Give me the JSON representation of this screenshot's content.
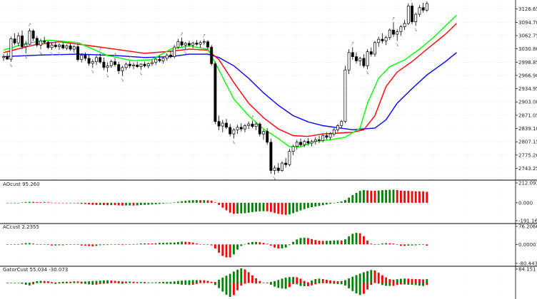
{
  "chart_data": [
    {
      "type": "candlestick",
      "panel": "main",
      "ylim": [
        2720,
        3145
      ],
      "y_ticks": [
        "3126.65",
        "3094.70",
        "3062.75",
        "3030.80",
        "2998.85",
        "2966.90",
        "2934.95",
        "2903.00",
        "2871.05",
        "2839.10",
        "2807.15",
        "2775.20",
        "2743.25"
      ],
      "candles": [
        {
          "o": 3010,
          "h": 3018,
          "l": 3002,
          "c": 3012
        },
        {
          "o": 3012,
          "h": 3022,
          "l": 3005,
          "c": 3006
        },
        {
          "o": 3006,
          "h": 3060,
          "l": 3000,
          "c": 3055
        },
        {
          "o": 3055,
          "h": 3068,
          "l": 3040,
          "c": 3045
        },
        {
          "o": 3045,
          "h": 3070,
          "l": 3038,
          "c": 3062
        },
        {
          "o": 3062,
          "h": 3075,
          "l": 3030,
          "c": 3036
        },
        {
          "o": 3036,
          "h": 3050,
          "l": 3020,
          "c": 3042
        },
        {
          "o": 3042,
          "h": 3080,
          "l": 3040,
          "c": 3074
        },
        {
          "o": 3074,
          "h": 3078,
          "l": 3050,
          "c": 3056
        },
        {
          "o": 3056,
          "h": 3062,
          "l": 3035,
          "c": 3040
        },
        {
          "o": 3040,
          "h": 3055,
          "l": 3030,
          "c": 3050
        },
        {
          "o": 3050,
          "h": 3060,
          "l": 3044,
          "c": 3047
        },
        {
          "o": 3047,
          "h": 3050,
          "l": 3030,
          "c": 3034
        },
        {
          "o": 3034,
          "h": 3045,
          "l": 3028,
          "c": 3040
        },
        {
          "o": 3040,
          "h": 3048,
          "l": 3032,
          "c": 3036
        },
        {
          "o": 3036,
          "h": 3044,
          "l": 3028,
          "c": 3040
        },
        {
          "o": 3040,
          "h": 3046,
          "l": 3030,
          "c": 3033
        },
        {
          "o": 3033,
          "h": 3042,
          "l": 3028,
          "c": 3038
        },
        {
          "o": 3038,
          "h": 3044,
          "l": 3026,
          "c": 3030
        },
        {
          "o": 3030,
          "h": 3040,
          "l": 3022,
          "c": 3036
        },
        {
          "o": 3036,
          "h": 3042,
          "l": 3000,
          "c": 3005
        },
        {
          "o": 3005,
          "h": 3020,
          "l": 2998,
          "c": 3016
        },
        {
          "o": 3016,
          "h": 3022,
          "l": 3002,
          "c": 3008
        },
        {
          "o": 3008,
          "h": 3018,
          "l": 2990,
          "c": 2996
        },
        {
          "o": 2996,
          "h": 3005,
          "l": 2985,
          "c": 3000
        },
        {
          "o": 3000,
          "h": 3015,
          "l": 2992,
          "c": 3010
        },
        {
          "o": 3010,
          "h": 3020,
          "l": 2995,
          "c": 2999
        },
        {
          "o": 2999,
          "h": 3010,
          "l": 2980,
          "c": 2986
        },
        {
          "o": 2986,
          "h": 2998,
          "l": 2975,
          "c": 2990
        },
        {
          "o": 2990,
          "h": 3005,
          "l": 2985,
          "c": 3000
        },
        {
          "o": 3000,
          "h": 3008,
          "l": 2988,
          "c": 2993
        },
        {
          "o": 2993,
          "h": 3000,
          "l": 2970,
          "c": 2978
        },
        {
          "o": 2978,
          "h": 2990,
          "l": 2965,
          "c": 2986
        },
        {
          "o": 2986,
          "h": 2998,
          "l": 2980,
          "c": 2994
        },
        {
          "o": 2994,
          "h": 3002,
          "l": 2984,
          "c": 2990
        },
        {
          "o": 2990,
          "h": 2998,
          "l": 2982,
          "c": 2992
        },
        {
          "o": 2992,
          "h": 3000,
          "l": 2985,
          "c": 2988
        },
        {
          "o": 2988,
          "h": 2996,
          "l": 2980,
          "c": 2994
        },
        {
          "o": 2994,
          "h": 3000,
          "l": 2986,
          "c": 2990
        },
        {
          "o": 2990,
          "h": 2998,
          "l": 2984,
          "c": 2995
        },
        {
          "o": 2995,
          "h": 3005,
          "l": 2990,
          "c": 2998
        },
        {
          "o": 2998,
          "h": 3010,
          "l": 2992,
          "c": 3006
        },
        {
          "o": 3006,
          "h": 3015,
          "l": 2998,
          "c": 3002
        },
        {
          "o": 3002,
          "h": 3012,
          "l": 2996,
          "c": 3008
        },
        {
          "o": 3008,
          "h": 3020,
          "l": 3002,
          "c": 3016
        },
        {
          "o": 3016,
          "h": 3025,
          "l": 3008,
          "c": 3012
        },
        {
          "o": 3012,
          "h": 3040,
          "l": 3008,
          "c": 3035
        },
        {
          "o": 3035,
          "h": 3055,
          "l": 3030,
          "c": 3048
        },
        {
          "o": 3048,
          "h": 3058,
          "l": 3036,
          "c": 3040
        },
        {
          "o": 3040,
          "h": 3048,
          "l": 3030,
          "c": 3044
        },
        {
          "o": 3044,
          "h": 3050,
          "l": 3036,
          "c": 3040
        },
        {
          "o": 3040,
          "h": 3048,
          "l": 3032,
          "c": 3045
        },
        {
          "o": 3045,
          "h": 3052,
          "l": 3038,
          "c": 3042
        },
        {
          "o": 3042,
          "h": 3050,
          "l": 3034,
          "c": 3046
        },
        {
          "o": 3046,
          "h": 3054,
          "l": 3040,
          "c": 3048
        },
        {
          "o": 3048,
          "h": 3052,
          "l": 3030,
          "c": 3035
        },
        {
          "o": 3035,
          "h": 3040,
          "l": 2990,
          "c": 2995
        },
        {
          "o": 2995,
          "h": 3000,
          "l": 2850,
          "c": 2856
        },
        {
          "o": 2856,
          "h": 2870,
          "l": 2835,
          "c": 2845
        },
        {
          "o": 2845,
          "h": 2860,
          "l": 2830,
          "c": 2852
        },
        {
          "o": 2852,
          "h": 2862,
          "l": 2838,
          "c": 2842
        },
        {
          "o": 2842,
          "h": 2850,
          "l": 2820,
          "c": 2826
        },
        {
          "o": 2826,
          "h": 2840,
          "l": 2815,
          "c": 2836
        },
        {
          "o": 2836,
          "h": 2848,
          "l": 2826,
          "c": 2842
        },
        {
          "o": 2842,
          "h": 2852,
          "l": 2832,
          "c": 2838
        },
        {
          "o": 2838,
          "h": 2850,
          "l": 2830,
          "c": 2846
        },
        {
          "o": 2846,
          "h": 2856,
          "l": 2838,
          "c": 2850
        },
        {
          "o": 2850,
          "h": 2858,
          "l": 2840,
          "c": 2844
        },
        {
          "o": 2844,
          "h": 2855,
          "l": 2835,
          "c": 2850
        },
        {
          "o": 2850,
          "h": 2854,
          "l": 2820,
          "c": 2826
        },
        {
          "o": 2826,
          "h": 2836,
          "l": 2812,
          "c": 2832
        },
        {
          "o": 2832,
          "h": 2840,
          "l": 2800,
          "c": 2806
        },
        {
          "o": 2806,
          "h": 2815,
          "l": 2730,
          "c": 2738
        },
        {
          "o": 2738,
          "h": 2750,
          "l": 2728,
          "c": 2744
        },
        {
          "o": 2744,
          "h": 2756,
          "l": 2732,
          "c": 2738
        },
        {
          "o": 2738,
          "h": 2760,
          "l": 2735,
          "c": 2756
        },
        {
          "o": 2756,
          "h": 2768,
          "l": 2745,
          "c": 2752
        },
        {
          "o": 2752,
          "h": 2790,
          "l": 2748,
          "c": 2784
        },
        {
          "o": 2784,
          "h": 2800,
          "l": 2775,
          "c": 2796
        },
        {
          "o": 2796,
          "h": 2812,
          "l": 2788,
          "c": 2806
        },
        {
          "o": 2806,
          "h": 2815,
          "l": 2796,
          "c": 2800
        },
        {
          "o": 2800,
          "h": 2812,
          "l": 2794,
          "c": 2808
        },
        {
          "o": 2808,
          "h": 2816,
          "l": 2798,
          "c": 2804
        },
        {
          "o": 2804,
          "h": 2812,
          "l": 2796,
          "c": 2808
        },
        {
          "o": 2808,
          "h": 2818,
          "l": 2800,
          "c": 2812
        },
        {
          "o": 2812,
          "h": 2822,
          "l": 2804,
          "c": 2810
        },
        {
          "o": 2810,
          "h": 2826,
          "l": 2806,
          "c": 2822
        },
        {
          "o": 2822,
          "h": 2830,
          "l": 2812,
          "c": 2818
        },
        {
          "o": 2818,
          "h": 2830,
          "l": 2812,
          "c": 2826
        },
        {
          "o": 2826,
          "h": 2840,
          "l": 2820,
          "c": 2836
        },
        {
          "o": 2836,
          "h": 2850,
          "l": 2830,
          "c": 2846
        },
        {
          "o": 2846,
          "h": 2860,
          "l": 2840,
          "c": 2856
        },
        {
          "o": 2856,
          "h": 2990,
          "l": 2852,
          "c": 2980
        },
        {
          "o": 2980,
          "h": 3030,
          "l": 2970,
          "c": 3022
        },
        {
          "o": 3022,
          "h": 3035,
          "l": 3005,
          "c": 3012
        },
        {
          "o": 3012,
          "h": 3022,
          "l": 2996,
          "c": 3002
        },
        {
          "o": 3002,
          "h": 3012,
          "l": 2990,
          "c": 3008
        },
        {
          "o": 3008,
          "h": 3018,
          "l": 2985,
          "c": 2990
        },
        {
          "o": 2990,
          "h": 3030,
          "l": 2982,
          "c": 3024
        },
        {
          "o": 3024,
          "h": 3034,
          "l": 3012,
          "c": 3018
        },
        {
          "o": 3018,
          "h": 3050,
          "l": 3012,
          "c": 3046
        },
        {
          "o": 3046,
          "h": 3060,
          "l": 3036,
          "c": 3054
        },
        {
          "o": 3054,
          "h": 3068,
          "l": 3044,
          "c": 3050
        },
        {
          "o": 3050,
          "h": 3062,
          "l": 3040,
          "c": 3058
        },
        {
          "o": 3058,
          "h": 3080,
          "l": 3052,
          "c": 3076
        },
        {
          "o": 3076,
          "h": 3095,
          "l": 3060,
          "c": 3066
        },
        {
          "o": 3066,
          "h": 3078,
          "l": 3050,
          "c": 3072
        },
        {
          "o": 3072,
          "h": 3088,
          "l": 3062,
          "c": 3084
        },
        {
          "o": 3084,
          "h": 3100,
          "l": 3076,
          "c": 3092
        },
        {
          "o": 3092,
          "h": 3140,
          "l": 3088,
          "c": 3134
        },
        {
          "o": 3134,
          "h": 3142,
          "l": 3090,
          "c": 3096
        },
        {
          "o": 3096,
          "h": 3118,
          "l": 3086,
          "c": 3114
        },
        {
          "o": 3114,
          "h": 3136,
          "l": 3108,
          "c": 3130
        },
        {
          "o": 3130,
          "h": 3142,
          "l": 3118,
          "c": 3124
        },
        {
          "o": 3124,
          "h": 3145,
          "l": 3120,
          "c": 3140
        }
      ],
      "lines": [
        {
          "color": "#0000ff",
          "points": [
            [
              0,
              3012
            ],
            [
              10,
              3016
            ],
            [
              20,
              3018
            ],
            [
              30,
              3015
            ],
            [
              38,
              3010
            ],
            [
              45,
              3012
            ],
            [
              50,
              3018
            ],
            [
              55,
              3018
            ],
            [
              58,
              3010
            ],
            [
              62,
              2990
            ],
            [
              66,
              2960
            ],
            [
              70,
              2925
            ],
            [
              74,
              2895
            ],
            [
              78,
              2870
            ],
            [
              82,
              2855
            ],
            [
              86,
              2846
            ],
            [
              90,
              2841
            ],
            [
              94,
              2836
            ],
            [
              97,
              2838
            ],
            [
              100,
              2840
            ],
            [
              103,
              2860
            ],
            [
              106,
              2900
            ],
            [
              110,
              2935
            ],
            [
              114,
              2968
            ],
            [
              119,
              3000
            ],
            [
              122,
              3022
            ]
          ]
        },
        {
          "color": "#ff0000",
          "points": [
            [
              0,
              3022
            ],
            [
              8,
              3040
            ],
            [
              15,
              3048
            ],
            [
              22,
              3040
            ],
            [
              30,
              3030
            ],
            [
              38,
              3020
            ],
            [
              45,
              3025
            ],
            [
              50,
              3030
            ],
            [
              55,
              3028
            ],
            [
              58,
              3005
            ],
            [
              62,
              2950
            ],
            [
              66,
              2900
            ],
            [
              70,
              2865
            ],
            [
              74,
              2838
            ],
            [
              78,
              2822
            ],
            [
              82,
              2820
            ],
            [
              86,
              2826
            ],
            [
              90,
              2828
            ],
            [
              94,
              2830
            ],
            [
              97,
              2836
            ],
            [
              100,
              2870
            ],
            [
              103,
              2940
            ],
            [
              106,
              2975
            ],
            [
              110,
              3000
            ],
            [
              114,
              3030
            ],
            [
              119,
              3066
            ],
            [
              122,
              3092
            ]
          ]
        },
        {
          "color": "#00ff00",
          "points": [
            [
              0,
              3028
            ],
            [
              6,
              3044
            ],
            [
              12,
              3052
            ],
            [
              20,
              3046
            ],
            [
              28,
              3015
            ],
            [
              35,
              3002
            ],
            [
              40,
              3005
            ],
            [
              45,
              3030
            ],
            [
              50,
              3038
            ],
            [
              55,
              3030
            ],
            [
              58,
              2980
            ],
            [
              62,
              2910
            ],
            [
              66,
              2870
            ],
            [
              70,
              2838
            ],
            [
              74,
              2815
            ],
            [
              77,
              2795
            ],
            [
              80,
              2795
            ],
            [
              84,
              2808
            ],
            [
              88,
              2812
            ],
            [
              92,
              2818
            ],
            [
              96,
              2840
            ],
            [
              98,
              2900
            ],
            [
              101,
              2960
            ],
            [
              104,
              2988
            ],
            [
              108,
              3004
            ],
            [
              112,
              3030
            ],
            [
              116,
              3060
            ],
            [
              119,
              3086
            ],
            [
              122,
              3112
            ]
          ]
        }
      ]
    },
    {
      "type": "bar",
      "panel": "aocust",
      "label": "AOcust 95.260",
      "ylim": [
        -191.16,
        212.093
      ],
      "y_ticks": [
        "212.093",
        "0.000",
        "-191.160"
      ]
    },
    {
      "type": "bar",
      "panel": "accust",
      "label": "ACcust 2.2355",
      "ylim": [
        -80.4432,
        76.2066
      ],
      "y_ticks": [
        "76.2066",
        "0.0000",
        "-80.4432"
      ]
    },
    {
      "type": "bar",
      "panel": "gatorcust",
      "label": "GatorCust 55.034 -30.073",
      "ylim": [
        -30,
        84.151
      ],
      "y_ticks": [
        "84.151"
      ]
    }
  ],
  "colors": {
    "bull": "#008000",
    "bear": "#ff0000",
    "candle": "#000000",
    "arrow": "#909090",
    "divider": "#000000"
  }
}
